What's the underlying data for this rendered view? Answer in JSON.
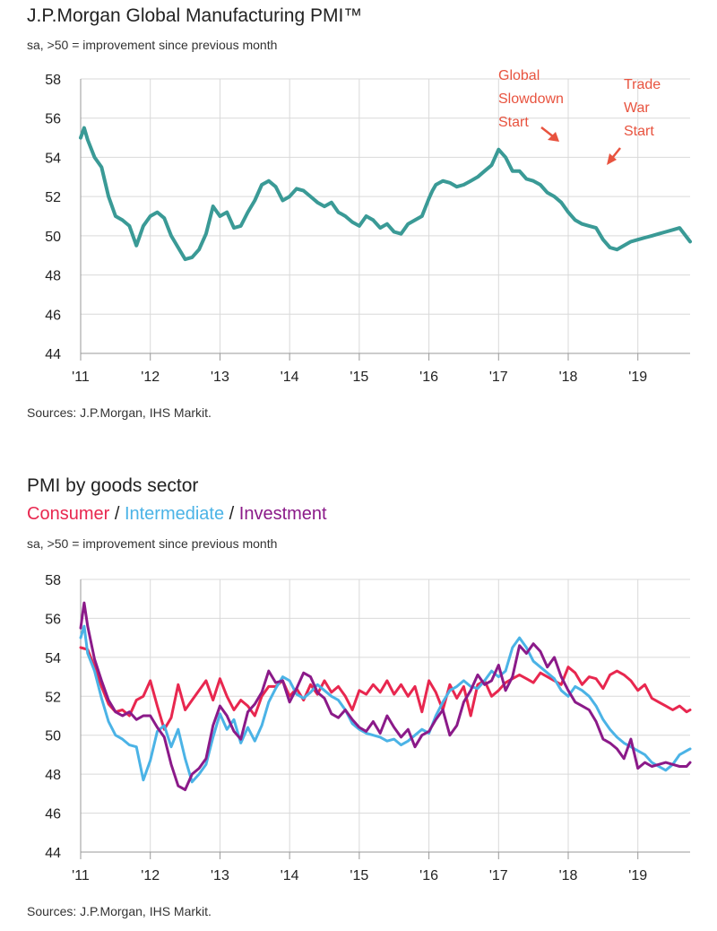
{
  "chart1": {
    "title": "J.P.Morgan Global Manufacturing PMI™",
    "subtitle": "sa, >50 = improvement since previous month",
    "source": "Sources: J.P.Morgan, IHS Markit.",
    "annotations": {
      "global_slowdown": [
        "Global",
        "Slowdown",
        "Start"
      ],
      "trade_war": [
        "Trade",
        "War",
        "Start"
      ]
    }
  },
  "chart2": {
    "title": "PMI by goods sector",
    "legend": {
      "consumer": "Consumer",
      "sep1": " / ",
      "intermediate": "Intermediate",
      "sep2": " / ",
      "investment": "Investment"
    },
    "subtitle": "sa, >50 = improvement since previous month",
    "source": "Sources: J.P.Morgan, IHS Markit."
  },
  "colors": {
    "pmi": "#3a9a96",
    "consumer": "#e8274f",
    "intermediate": "#4bb3e6",
    "investment": "#8b1a89",
    "annotation": "#e8533f",
    "grid": "#d9d9d9"
  },
  "chart_data": [
    {
      "type": "line",
      "title": "J.P.Morgan Global Manufacturing PMI™",
      "xlim": [
        2011.0,
        2019.75
      ],
      "ylim": [
        44,
        58
      ],
      "yticks": [
        44,
        46,
        48,
        50,
        52,
        54,
        56,
        58
      ],
      "xticks": [
        "'11",
        "'12",
        "'13",
        "'14",
        "'15",
        "'16",
        "'17",
        "'18",
        "'19"
      ],
      "grid": true,
      "series": [
        {
          "name": "PMI",
          "x": [
            2011.0,
            2011.05,
            2011.1,
            2011.2,
            2011.3,
            2011.4,
            2011.5,
            2011.6,
            2011.7,
            2011.8,
            2011.9,
            2012.0,
            2012.1,
            2012.2,
            2012.3,
            2012.4,
            2012.5,
            2012.6,
            2012.7,
            2012.8,
            2012.9,
            2013.0,
            2013.1,
            2013.2,
            2013.3,
            2013.4,
            2013.5,
            2013.6,
            2013.7,
            2013.8,
            2013.9,
            2014.0,
            2014.1,
            2014.2,
            2014.3,
            2014.4,
            2014.5,
            2014.6,
            2014.7,
            2014.8,
            2014.9,
            2015.0,
            2015.1,
            2015.2,
            2015.3,
            2015.4,
            2015.5,
            2015.6,
            2015.7,
            2015.8,
            2015.9,
            2016.0,
            2016.05,
            2016.1,
            2016.2,
            2016.3,
            2016.4,
            2016.5,
            2016.6,
            2016.7,
            2016.8,
            2016.9,
            2017.0,
            2017.1,
            2017.2,
            2017.3,
            2017.4,
            2017.5,
            2017.6,
            2017.7,
            2017.8,
            2017.9,
            2018.0,
            2018.1,
            2018.2,
            2018.3,
            2018.4,
            2018.5,
            2018.6,
            2018.7,
            2018.8,
            2018.9,
            2019.0,
            2019.1,
            2019.2,
            2019.3,
            2019.4,
            2019.5,
            2019.6,
            2019.75
          ],
          "y": [
            55.0,
            55.5,
            54.9,
            54.0,
            53.5,
            52.0,
            51.0,
            50.8,
            50.5,
            49.5,
            50.5,
            51.0,
            51.2,
            50.9,
            50.0,
            49.4,
            48.8,
            48.9,
            49.3,
            50.1,
            51.5,
            51.0,
            51.2,
            50.4,
            50.5,
            51.2,
            51.8,
            52.6,
            52.8,
            52.5,
            51.8,
            52.0,
            52.4,
            52.3,
            52.0,
            51.7,
            51.5,
            51.7,
            51.2,
            51.0,
            50.7,
            50.5,
            51.0,
            50.8,
            50.4,
            50.6,
            50.2,
            50.1,
            50.6,
            50.8,
            51.0,
            51.9,
            52.3,
            52.6,
            52.8,
            52.7,
            52.5,
            52.6,
            52.8,
            53.0,
            53.3,
            53.6,
            54.4,
            54.0,
            53.3,
            53.3,
            52.9,
            52.8,
            52.6,
            52.2,
            52.0,
            51.7,
            51.2,
            50.8,
            50.6,
            50.5,
            50.4,
            49.8,
            49.4,
            49.3,
            49.5,
            49.7,
            49.8,
            49.9,
            50.0,
            50.1,
            50.2,
            50.3,
            50.4,
            49.7
          ]
        }
      ],
      "annotations": [
        "Global Slowdown Start",
        "Trade War Start"
      ]
    },
    {
      "type": "line",
      "title": "PMI by goods sector",
      "xlim": [
        2011.0,
        2019.75
      ],
      "ylim": [
        44,
        58
      ],
      "yticks": [
        44,
        46,
        48,
        50,
        52,
        54,
        56,
        58
      ],
      "xticks": [
        "'11",
        "'12",
        "'13",
        "'14",
        "'15",
        "'16",
        "'17",
        "'18",
        "'19"
      ],
      "grid": true,
      "series": [
        {
          "name": "Consumer",
          "x": [
            2011.0,
            2011.1,
            2011.2,
            2011.3,
            2011.4,
            2011.5,
            2011.6,
            2011.7,
            2011.8,
            2011.9,
            2012.0,
            2012.1,
            2012.2,
            2012.3,
            2012.4,
            2012.5,
            2012.6,
            2012.7,
            2012.8,
            2012.9,
            2013.0,
            2013.1,
            2013.2,
            2013.3,
            2013.4,
            2013.5,
            2013.6,
            2013.7,
            2013.8,
            2013.9,
            2014.0,
            2014.1,
            2014.2,
            2014.3,
            2014.4,
            2014.5,
            2014.6,
            2014.7,
            2014.8,
            2014.9,
            2015.0,
            2015.1,
            2015.2,
            2015.3,
            2015.4,
            2015.5,
            2015.6,
            2015.7,
            2015.8,
            2015.9,
            2016.0,
            2016.1,
            2016.2,
            2016.3,
            2016.4,
            2016.5,
            2016.6,
            2016.7,
            2016.8,
            2016.9,
            2017.0,
            2017.1,
            2017.2,
            2017.3,
            2017.4,
            2017.5,
            2017.6,
            2017.7,
            2017.8,
            2017.9,
            2018.0,
            2018.1,
            2018.2,
            2018.3,
            2018.4,
            2018.5,
            2018.6,
            2018.7,
            2018.8,
            2018.9,
            2019.0,
            2019.1,
            2019.2,
            2019.3,
            2019.4,
            2019.5,
            2019.6,
            2019.7,
            2019.75
          ],
          "y": [
            54.5,
            54.4,
            53.5,
            52.5,
            51.6,
            51.2,
            51.3,
            51.0,
            51.8,
            52.0,
            52.8,
            51.5,
            50.3,
            50.9,
            52.6,
            51.3,
            51.8,
            52.3,
            52.8,
            51.8,
            52.9,
            52.0,
            51.3,
            51.8,
            51.5,
            51.0,
            52.0,
            52.5,
            52.5,
            52.8,
            52.0,
            52.4,
            51.8,
            52.6,
            52.1,
            52.8,
            52.2,
            52.5,
            52.0,
            51.3,
            52.3,
            52.1,
            52.6,
            52.2,
            52.8,
            52.1,
            52.6,
            52.0,
            52.5,
            51.2,
            52.8,
            52.2,
            51.3,
            52.6,
            51.9,
            52.5,
            51.0,
            52.6,
            52.8,
            52.0,
            52.3,
            52.7,
            52.9,
            53.1,
            52.9,
            52.7,
            53.2,
            53.0,
            52.8,
            52.6,
            53.5,
            53.2,
            52.6,
            53.0,
            52.9,
            52.4,
            53.1,
            53.3,
            53.1,
            52.8,
            52.3,
            52.6,
            51.9,
            51.7,
            51.5,
            51.3,
            51.5,
            51.2,
            51.3
          ]
        },
        {
          "name": "Intermediate",
          "x": [
            2011.0,
            2011.05,
            2011.1,
            2011.2,
            2011.3,
            2011.4,
            2011.5,
            2011.6,
            2011.7,
            2011.8,
            2011.9,
            2012.0,
            2012.1,
            2012.2,
            2012.3,
            2012.4,
            2012.5,
            2012.6,
            2012.7,
            2012.8,
            2012.9,
            2013.0,
            2013.1,
            2013.2,
            2013.3,
            2013.4,
            2013.5,
            2013.6,
            2013.7,
            2013.8,
            2013.9,
            2014.0,
            2014.1,
            2014.2,
            2014.3,
            2014.4,
            2014.5,
            2014.6,
            2014.7,
            2014.8,
            2014.9,
            2015.0,
            2015.1,
            2015.2,
            2015.3,
            2015.4,
            2015.5,
            2015.6,
            2015.7,
            2015.8,
            2015.9,
            2016.0,
            2016.1,
            2016.2,
            2016.3,
            2016.4,
            2016.5,
            2016.6,
            2016.7,
            2016.8,
            2016.9,
            2017.0,
            2017.1,
            2017.2,
            2017.3,
            2017.4,
            2017.5,
            2017.6,
            2017.7,
            2017.8,
            2017.9,
            2018.0,
            2018.1,
            2018.2,
            2018.3,
            2018.4,
            2018.5,
            2018.6,
            2018.7,
            2018.8,
            2018.9,
            2019.0,
            2019.1,
            2019.2,
            2019.3,
            2019.4,
            2019.5,
            2019.6,
            2019.7,
            2019.75
          ],
          "y": [
            55.0,
            55.6,
            54.2,
            53.3,
            51.9,
            50.7,
            50.0,
            49.8,
            49.5,
            49.4,
            47.7,
            48.7,
            50.2,
            50.5,
            49.4,
            50.3,
            48.8,
            47.6,
            48.0,
            48.5,
            49.9,
            51.1,
            50.3,
            50.8,
            49.6,
            50.4,
            49.7,
            50.5,
            51.7,
            52.4,
            53.0,
            52.8,
            52.1,
            51.9,
            52.2,
            52.6,
            52.3,
            52.0,
            51.8,
            51.3,
            50.6,
            50.3,
            50.1,
            50.0,
            49.9,
            49.7,
            49.8,
            49.5,
            49.7,
            50.0,
            50.3,
            50.1,
            51.0,
            51.7,
            52.3,
            52.5,
            52.8,
            52.5,
            52.4,
            52.8,
            53.3,
            53.0,
            53.3,
            54.5,
            55.0,
            54.5,
            53.8,
            53.5,
            53.2,
            52.9,
            52.3,
            52.0,
            52.5,
            52.3,
            52.0,
            51.5,
            50.8,
            50.3,
            49.9,
            49.6,
            49.4,
            49.2,
            49.0,
            48.6,
            48.4,
            48.2,
            48.5,
            49.0,
            49.2,
            49.3
          ]
        },
        {
          "name": "Investment",
          "x": [
            2011.0,
            2011.05,
            2011.1,
            2011.2,
            2011.3,
            2011.4,
            2011.5,
            2011.6,
            2011.7,
            2011.8,
            2011.9,
            2012.0,
            2012.1,
            2012.2,
            2012.3,
            2012.4,
            2012.5,
            2012.6,
            2012.7,
            2012.8,
            2012.9,
            2013.0,
            2013.1,
            2013.2,
            2013.3,
            2013.4,
            2013.5,
            2013.6,
            2013.7,
            2013.8,
            2013.9,
            2014.0,
            2014.1,
            2014.2,
            2014.3,
            2014.4,
            2014.5,
            2014.6,
            2014.7,
            2014.8,
            2014.9,
            2015.0,
            2015.1,
            2015.2,
            2015.3,
            2015.4,
            2015.5,
            2015.6,
            2015.7,
            2015.8,
            2015.9,
            2016.0,
            2016.1,
            2016.2,
            2016.3,
            2016.4,
            2016.5,
            2016.6,
            2016.7,
            2016.8,
            2016.9,
            2017.0,
            2017.1,
            2017.2,
            2017.3,
            2017.4,
            2017.5,
            2017.6,
            2017.7,
            2017.8,
            2017.9,
            2018.0,
            2018.1,
            2018.2,
            2018.3,
            2018.4,
            2018.5,
            2018.6,
            2018.7,
            2018.8,
            2018.9,
            2019.0,
            2019.1,
            2019.2,
            2019.3,
            2019.4,
            2019.5,
            2019.6,
            2019.7,
            2019.75
          ],
          "y": [
            55.5,
            56.8,
            55.6,
            53.9,
            52.8,
            51.8,
            51.2,
            51.0,
            51.2,
            50.8,
            51.0,
            51.0,
            50.4,
            49.9,
            48.5,
            47.4,
            47.2,
            48.0,
            48.3,
            48.8,
            50.5,
            51.5,
            51.0,
            50.2,
            49.8,
            51.2,
            51.6,
            52.2,
            53.3,
            52.7,
            52.8,
            51.7,
            52.4,
            53.2,
            53.0,
            52.2,
            51.9,
            51.1,
            50.9,
            51.3,
            50.8,
            50.4,
            50.2,
            50.7,
            50.1,
            51.0,
            50.4,
            49.9,
            50.3,
            49.4,
            50.0,
            50.2,
            50.8,
            51.3,
            50.0,
            50.5,
            51.7,
            52.3,
            53.1,
            52.6,
            52.8,
            53.6,
            52.3,
            53.0,
            54.6,
            54.2,
            54.7,
            54.3,
            53.5,
            54.0,
            53.0,
            52.3,
            51.7,
            51.5,
            51.3,
            50.7,
            49.8,
            49.6,
            49.3,
            48.8,
            49.8,
            48.3,
            48.6,
            48.4,
            48.5,
            48.6,
            48.5,
            48.4,
            48.4,
            48.6
          ]
        }
      ]
    }
  ]
}
